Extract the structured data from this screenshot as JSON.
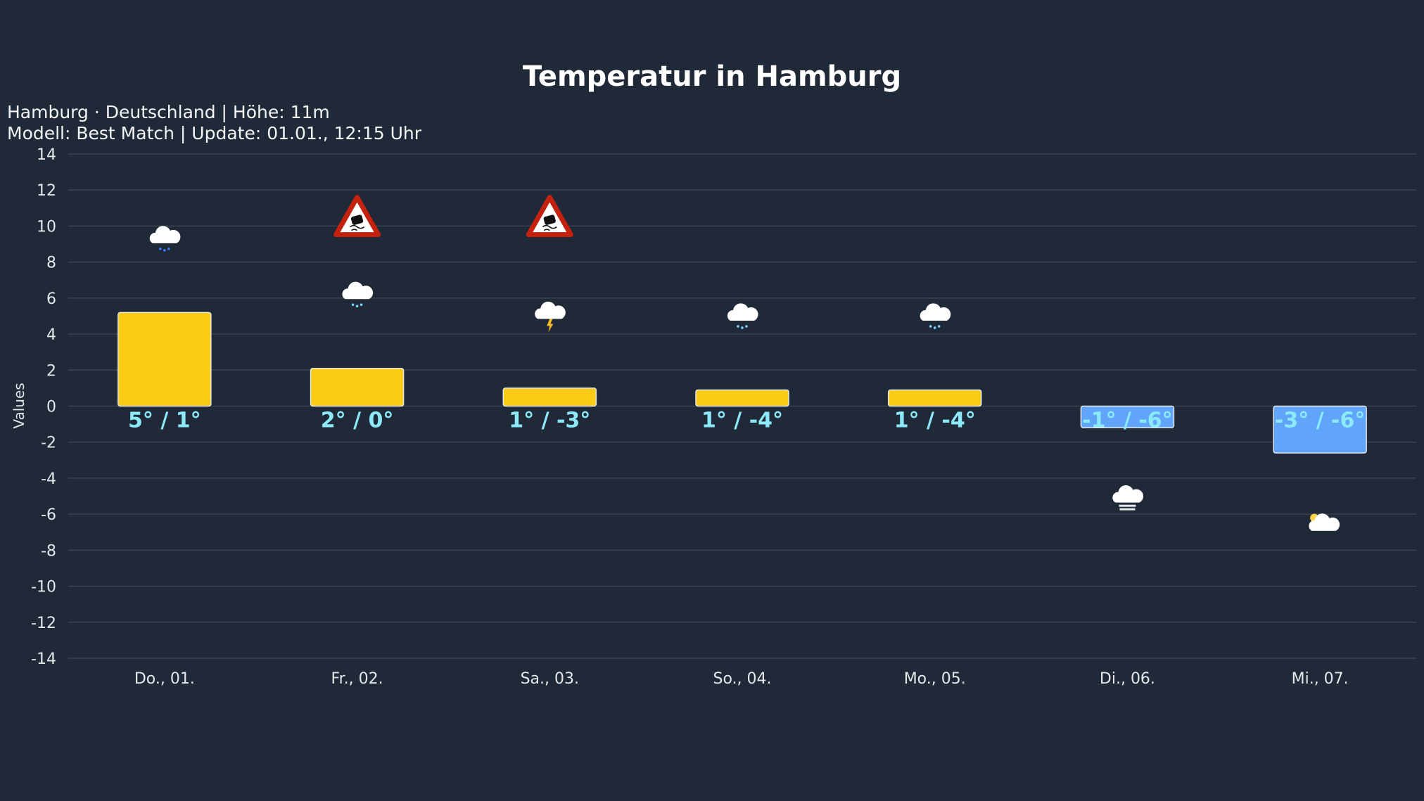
{
  "chart_data": {
    "type": "bar",
    "title": "Temperatur in Hamburg",
    "subtitle_lines": [
      "Hamburg · Deutschland | Höhe: 11m",
      "Modell: Best Match | Update: 01.01., 12:15 Uhr"
    ],
    "xlabel": "",
    "ylabel": "Values",
    "ylim": [
      -14,
      14
    ],
    "yticks": [
      14,
      12,
      10,
      8,
      6,
      4,
      2,
      0,
      -2,
      -4,
      -6,
      -8,
      -10,
      -12,
      -14
    ],
    "grid": true,
    "categories": [
      "Do., 01.",
      "Fr., 02.",
      "Sa., 03.",
      "So., 04.",
      "Mo., 05.",
      "Di., 06.",
      "Mi., 07."
    ],
    "values": [
      5.2,
      2.1,
      1.0,
      0.9,
      0.9,
      -1.2,
      -2.6
    ],
    "data_labels": [
      "5° / 1°",
      "2° / 0°",
      "1° / -3°",
      "1° / -4°",
      "1° / -4°",
      "-1° / -6°",
      "-3° / -6°"
    ],
    "weather_icons": [
      {
        "icon": "rain-icon",
        "y": 9.2
      },
      {
        "icon": "snow-icon",
        "y": 6.1
      },
      {
        "icon": "thunderstorm-icon",
        "y": 5.0
      },
      {
        "icon": "snow-icon",
        "y": 4.9
      },
      {
        "icon": "snow-icon",
        "y": 4.9
      },
      {
        "icon": "fog-icon",
        "y": -5.2
      },
      {
        "icon": "partly-cloudy-icon",
        "y": -6.6
      }
    ],
    "warning_icons": [
      null,
      {
        "icon": "slippery-road-warning-icon",
        "y": 10.5
      },
      {
        "icon": "slippery-road-warning-icon",
        "y": 10.5
      },
      null,
      null,
      null,
      null
    ],
    "colors": {
      "positive": "#facc15",
      "negative": "#60a5fa",
      "label": "#8be9f8",
      "grid": "#3a4350",
      "background": "#1f2937"
    }
  }
}
